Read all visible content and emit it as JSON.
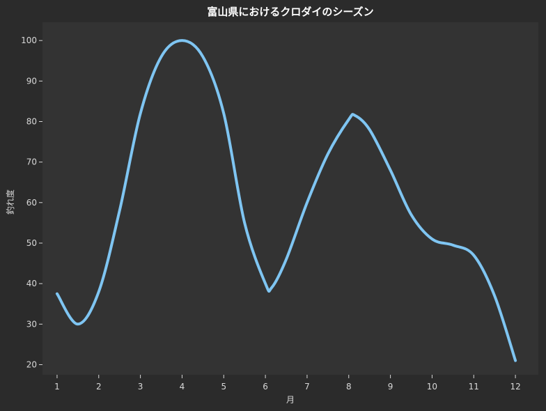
{
  "chart_data": {
    "type": "line",
    "title": "富山県におけるクロダイのシーズン",
    "xlabel": "月",
    "ylabel": "釣れ度",
    "x": [
      1,
      1.5,
      2,
      2.5,
      3,
      3.5,
      4,
      4.5,
      5,
      5.5,
      6,
      6.15,
      6.5,
      7,
      7.5,
      8,
      8.15,
      8.5,
      9,
      9.5,
      10,
      10.5,
      11,
      11.5,
      12
    ],
    "series": [
      {
        "values": [
          37.5,
          30,
          38,
          58,
          82,
          96,
          100,
          96,
          82,
          55,
          40,
          39,
          46,
          60,
          72,
          80.5,
          81.5,
          78,
          68,
          57,
          51,
          49.5,
          47,
          37,
          21
        ]
      }
    ],
    "xlim": [
      0.65,
      12.55
    ],
    "ylim": [
      17.5,
      104.5
    ],
    "xticks": [
      "1",
      "2",
      "3",
      "4",
      "5",
      "6",
      "7",
      "8",
      "9",
      "10",
      "11",
      "12"
    ],
    "yticks": [
      "20",
      "30",
      "40",
      "50",
      "60",
      "70",
      "80",
      "90",
      "100"
    ],
    "grid": false,
    "colors": {
      "line": "#7fc5f2",
      "plot_background": "#333333",
      "figure_background": "#2b2b2b",
      "text": "#d8d8d8"
    }
  }
}
